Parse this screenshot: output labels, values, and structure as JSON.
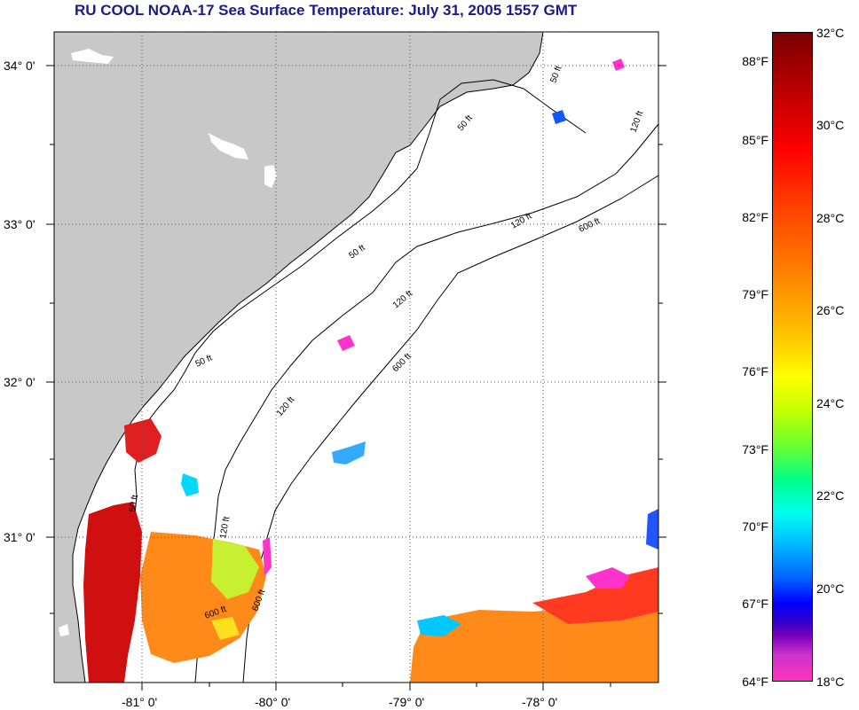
{
  "title": "RU COOL  NOAA-17  Sea Surface Temperature:  July 31, 2005 1557 GMT",
  "map": {
    "lat_labels": [
      "34° 0'",
      "33° 0'",
      "32° 0'",
      "31° 0'"
    ],
    "lon_labels": [
      "-81° 0'",
      "-80° 0'",
      "-79° 0'",
      "-78° 0'"
    ],
    "contour_labels": [
      "50 ft",
      "50 ft",
      "50 ft",
      "50 ft",
      "50 ft",
      "120 ft",
      "120 ft",
      "120 ft",
      "120 ft",
      "120 ft",
      "600 ft",
      "600 ft",
      "600 ft",
      "600 ft"
    ],
    "colors": {
      "land": "#c8c8c8",
      "ocean": "#ffffff",
      "grid": "#444444"
    }
  },
  "colorbar": {
    "fahrenheit_labels": [
      "88°F",
      "85°F",
      "82°F",
      "79°F",
      "76°F",
      "73°F",
      "70°F",
      "67°F",
      "64°F"
    ],
    "celsius_labels": [
      "32°C",
      "30°C",
      "28°C",
      "26°C",
      "24°C",
      "22°C",
      "20°C",
      "18°C"
    ],
    "range_celsius": [
      18,
      32
    ],
    "range_fahrenheit": [
      64,
      90
    ]
  }
}
